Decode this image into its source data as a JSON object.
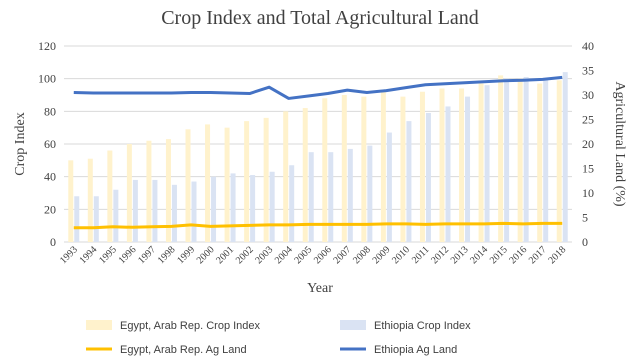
{
  "chart_data": {
    "type": "bar",
    "title": "Crop Index and Total Agricultural Land",
    "xlabel": "Year",
    "ylabel": "Crop Index",
    "y2label": "Agricultural Land (%)",
    "ylim": [
      0,
      120
    ],
    "y2lim": [
      0,
      40
    ],
    "yticks": [
      0,
      20,
      40,
      60,
      80,
      100,
      120
    ],
    "y2ticks": [
      0,
      5,
      10,
      15,
      20,
      25,
      30,
      35,
      40
    ],
    "grid": true,
    "legend_position": "bottom",
    "categories": [
      "1993",
      "1994",
      "1995",
      "1996",
      "1997",
      "1998",
      "1999",
      "2000",
      "2001",
      "2002",
      "2003",
      "2004",
      "2005",
      "2006",
      "2007",
      "2008",
      "2009",
      "2010",
      "2011",
      "2012",
      "2013",
      "2014",
      "2015",
      "2016",
      "2017",
      "2018"
    ],
    "series": [
      {
        "name": "Egypt, Arab Rep. Crop Index",
        "kind": "bar",
        "axis": "left",
        "color": "#FFF2CC",
        "values": [
          50,
          51,
          56,
          60,
          62,
          63,
          69,
          72,
          70,
          74,
          76,
          80,
          82,
          88,
          90,
          89,
          92,
          89,
          92,
          94,
          94,
          97,
          102,
          100,
          97,
          99
        ]
      },
      {
        "name": "Ethiopia Crop Index",
        "kind": "bar",
        "axis": "left",
        "color": "#DAE3F3",
        "values": [
          28,
          28,
          32,
          38,
          38,
          35,
          37,
          40,
          42,
          41,
          43,
          47,
          55,
          55,
          57,
          59,
          67,
          74,
          79,
          83,
          89,
          96,
          100,
          101,
          100,
          104
        ]
      },
      {
        "name": "Egypt, Arab Rep. Ag Land",
        "kind": "line",
        "axis": "right",
        "color": "#FFC000",
        "values": [
          2.9,
          2.9,
          3.1,
          3.0,
          3.1,
          3.2,
          3.5,
          3.2,
          3.3,
          3.4,
          3.5,
          3.5,
          3.6,
          3.6,
          3.6,
          3.6,
          3.7,
          3.7,
          3.6,
          3.7,
          3.7,
          3.7,
          3.8,
          3.7,
          3.8,
          3.8
        ]
      },
      {
        "name": "Ethiopia Ag Land",
        "kind": "line",
        "axis": "right",
        "color": "#4472C4",
        "values": [
          30.5,
          30.4,
          30.4,
          30.4,
          30.4,
          30.4,
          30.5,
          30.5,
          30.4,
          30.3,
          31.6,
          29.3,
          29.8,
          30.3,
          31.0,
          30.5,
          30.9,
          31.5,
          32.1,
          32.3,
          32.5,
          32.7,
          32.9,
          33.0,
          33.2,
          33.6
        ]
      }
    ]
  }
}
